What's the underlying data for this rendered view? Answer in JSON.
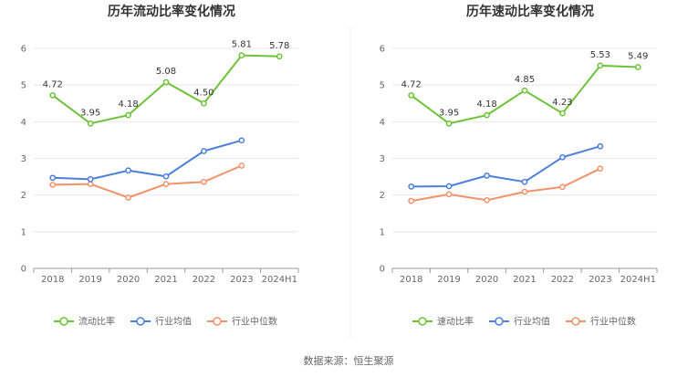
{
  "source_text": "数据来源：恒生聚源",
  "chart_data": [
    {
      "type": "line",
      "title": "历年流动比率变化情况",
      "categories": [
        "2018",
        "2019",
        "2020",
        "2021",
        "2022",
        "2023",
        "2024H1"
      ],
      "ylim": [
        0,
        6
      ],
      "yticks": [
        0,
        1,
        2,
        3,
        4,
        5,
        6
      ],
      "grid": true,
      "legend": "bottom-center",
      "series": [
        {
          "name": "流动比率",
          "color": "#6cc337",
          "labels": true,
          "values": [
            4.72,
            3.95,
            4.18,
            5.08,
            4.5,
            5.81,
            5.78
          ],
          "label_text": [
            "4.72",
            "3.95",
            "4.18",
            "5.08",
            "4.50",
            "5.81",
            "5.78"
          ]
        },
        {
          "name": "行业均值",
          "color": "#4a7fdd",
          "labels": false,
          "values": [
            2.47,
            2.43,
            2.67,
            2.51,
            3.2,
            3.49,
            null
          ]
        },
        {
          "name": "行业中位数",
          "color": "#f2926a",
          "labels": false,
          "values": [
            2.28,
            2.3,
            1.93,
            2.3,
            2.36,
            2.8,
            null
          ]
        }
      ]
    },
    {
      "type": "line",
      "title": "历年速动比率变化情况",
      "categories": [
        "2018",
        "2019",
        "2020",
        "2021",
        "2022",
        "2023",
        "2024H1"
      ],
      "ylim": [
        0,
        6
      ],
      "yticks": [
        0,
        1,
        2,
        3,
        4,
        5,
        6
      ],
      "grid": true,
      "legend": "bottom-center",
      "series": [
        {
          "name": "速动比率",
          "color": "#6cc337",
          "labels": true,
          "values": [
            4.72,
            3.95,
            4.18,
            4.85,
            4.23,
            5.53,
            5.49
          ],
          "label_text": [
            "4.72",
            "3.95",
            "4.18",
            "4.85",
            "4.23",
            "5.53",
            "5.49"
          ]
        },
        {
          "name": "行业均值",
          "color": "#4a7fdd",
          "labels": false,
          "values": [
            2.23,
            2.24,
            2.53,
            2.36,
            3.03,
            3.33,
            null
          ]
        },
        {
          "name": "行业中位数",
          "color": "#f2926a",
          "labels": false,
          "values": [
            1.84,
            2.02,
            1.86,
            2.09,
            2.22,
            2.72,
            null
          ]
        }
      ]
    }
  ]
}
